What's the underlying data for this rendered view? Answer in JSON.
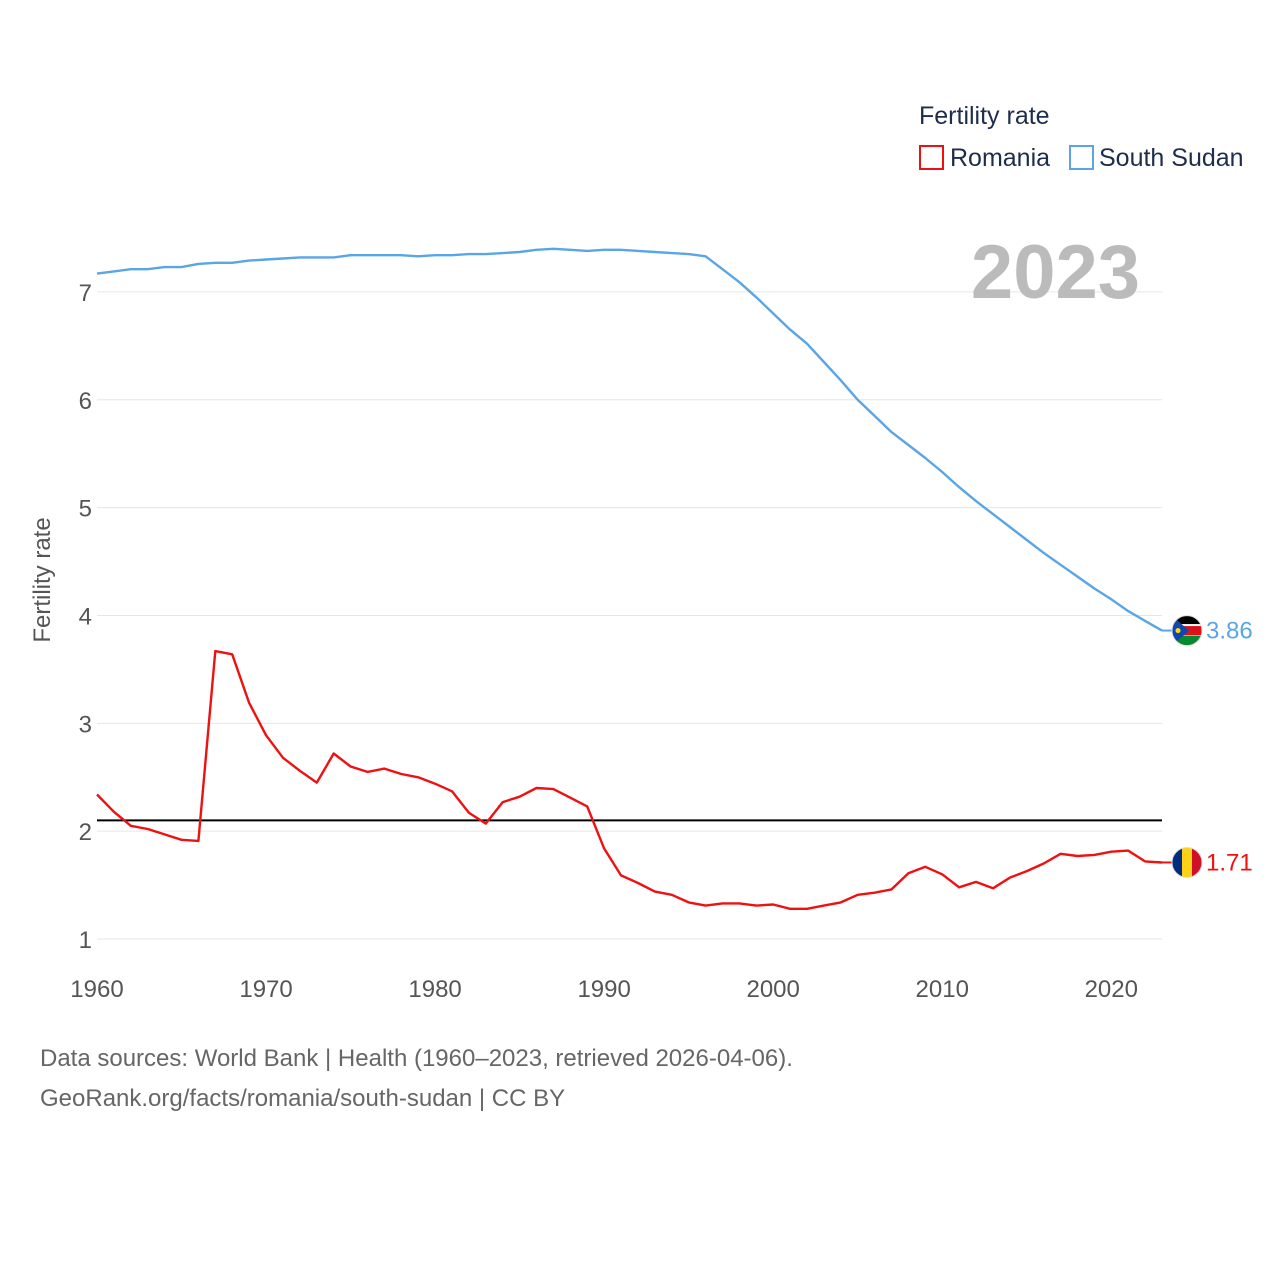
{
  "colors": {
    "romania": "#ee1111",
    "south_sudan": "#5aa5e6",
    "reference": "#000000",
    "grid": "#e6e6e6",
    "axis_text": "#555555",
    "year_watermark": "#bbbbbb",
    "legend_title": "#1e2d4a"
  },
  "chart_data": {
    "type": "line",
    "ylabel": "Fertility rate",
    "xlabel": "",
    "xlim": [
      1960,
      2023
    ],
    "ylim": [
      0.75,
      7.75
    ],
    "x_ticks": [
      1960,
      1970,
      1980,
      1990,
      2000,
      2010,
      2020
    ],
    "y_ticks": [
      1,
      2,
      3,
      4,
      5,
      6,
      7
    ],
    "grid": true,
    "reference_line": 2.1,
    "year_label": "2023",
    "legend": {
      "title": "Fertility rate",
      "position": "top-right",
      "entries": [
        "Romania",
        "South Sudan"
      ]
    },
    "x": [
      1960,
      1961,
      1962,
      1963,
      1964,
      1965,
      1966,
      1967,
      1968,
      1969,
      1970,
      1971,
      1972,
      1973,
      1974,
      1975,
      1976,
      1977,
      1978,
      1979,
      1980,
      1981,
      1982,
      1983,
      1984,
      1985,
      1986,
      1987,
      1988,
      1989,
      1990,
      1991,
      1992,
      1993,
      1994,
      1995,
      1996,
      1997,
      1998,
      1999,
      2000,
      2001,
      2002,
      2003,
      2004,
      2005,
      2006,
      2007,
      2008,
      2009,
      2010,
      2011,
      2012,
      2013,
      2014,
      2015,
      2016,
      2017,
      2018,
      2019,
      2020,
      2021,
      2022,
      2023
    ],
    "series": [
      {
        "name": "Romania",
        "color": "#ee1111",
        "end_label": "1.71",
        "values": [
          2.34,
          2.18,
          2.05,
          2.02,
          1.97,
          1.92,
          1.91,
          3.67,
          3.64,
          3.19,
          2.89,
          2.68,
          2.56,
          2.45,
          2.72,
          2.6,
          2.55,
          2.58,
          2.53,
          2.5,
          2.44,
          2.37,
          2.17,
          2.07,
          2.27,
          2.32,
          2.4,
          2.39,
          2.31,
          2.23,
          1.84,
          1.59,
          1.52,
          1.44,
          1.41,
          1.34,
          1.31,
          1.33,
          1.33,
          1.31,
          1.32,
          1.28,
          1.28,
          1.31,
          1.34,
          1.41,
          1.43,
          1.46,
          1.61,
          1.67,
          1.6,
          1.48,
          1.53,
          1.47,
          1.57,
          1.63,
          1.7,
          1.79,
          1.77,
          1.78,
          1.81,
          1.82,
          1.72,
          1.71
        ]
      },
      {
        "name": "South Sudan",
        "color": "#5aa5e6",
        "end_label": "3.86",
        "values": [
          7.17,
          7.19,
          7.21,
          7.21,
          7.23,
          7.23,
          7.26,
          7.27,
          7.27,
          7.29,
          7.3,
          7.31,
          7.32,
          7.32,
          7.32,
          7.34,
          7.34,
          7.34,
          7.34,
          7.33,
          7.34,
          7.34,
          7.35,
          7.35,
          7.36,
          7.37,
          7.39,
          7.4,
          7.39,
          7.38,
          7.39,
          7.39,
          7.38,
          7.37,
          7.36,
          7.35,
          7.33,
          7.21,
          7.09,
          6.95,
          6.8,
          6.65,
          6.52,
          6.35,
          6.18,
          6.0,
          5.85,
          5.7,
          5.58,
          5.46,
          5.33,
          5.19,
          5.06,
          4.94,
          4.82,
          4.7,
          4.58,
          4.47,
          4.36,
          4.25,
          4.15,
          4.04,
          3.95,
          3.86
        ]
      }
    ]
  },
  "footer": {
    "source_line": "Data sources: World Bank | Health (1960–2023, retrieved 2026-04-06).",
    "credit_line": "GeoRank.org/facts/romania/south-sudan | CC BY"
  }
}
